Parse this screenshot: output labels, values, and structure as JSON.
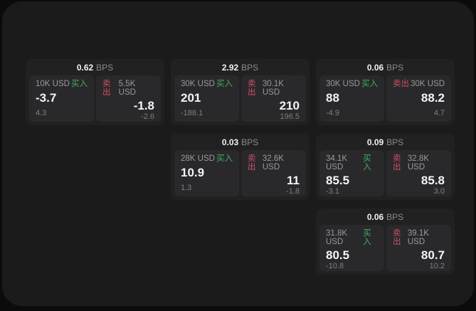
{
  "labels": {
    "bps_unit": "BPS",
    "buy": "买入",
    "sell": "卖出"
  },
  "colors": {
    "buy_green": "#3cb25e",
    "sell_red": "#cf4f64",
    "window_bg": "#1b1b1c",
    "card_bg": "#212122",
    "panel_bg": "#29292b"
  },
  "cards": [
    {
      "col": 0,
      "row": 0,
      "bps": "0.62",
      "buy": {
        "amount": "10K USD",
        "value": "-3.7",
        "delta": "4.3"
      },
      "sell": {
        "amount": "5.5K USD",
        "value": "-1.8",
        "delta": "-2.6"
      }
    },
    {
      "col": 1,
      "row": 0,
      "bps": "2.92",
      "buy": {
        "amount": "30K USD",
        "value": "201",
        "delta": "-188.1"
      },
      "sell": {
        "amount": "30.1K USD",
        "value": "210",
        "delta": "196.5"
      }
    },
    {
      "col": 2,
      "row": 0,
      "bps": "0.06",
      "buy": {
        "amount": "30K USD",
        "value": "88",
        "delta": "-4.9"
      },
      "sell": {
        "amount": "30K USD",
        "value": "88.2",
        "delta": "4.7"
      }
    },
    {
      "col": 1,
      "row": 1,
      "bps": "0.03",
      "buy": {
        "amount": "28K USD",
        "value": "10.9",
        "delta": "1.3"
      },
      "sell": {
        "amount": "32.6K USD",
        "value": "11",
        "delta": "-1.8"
      }
    },
    {
      "col": 2,
      "row": 1,
      "bps": "0.09",
      "buy": {
        "amount": "34.1K USD",
        "value": "85.5",
        "delta": "-3.1"
      },
      "sell": {
        "amount": "32.8K USD",
        "value": "85.8",
        "delta": "3.0"
      }
    },
    {
      "col": 2,
      "row": 2,
      "bps": "0.06",
      "buy": {
        "amount": "31.8K USD",
        "value": "80.5",
        "delta": "-10.8"
      },
      "sell": {
        "amount": "39.1K USD",
        "value": "80.7",
        "delta": "10.2"
      }
    }
  ]
}
